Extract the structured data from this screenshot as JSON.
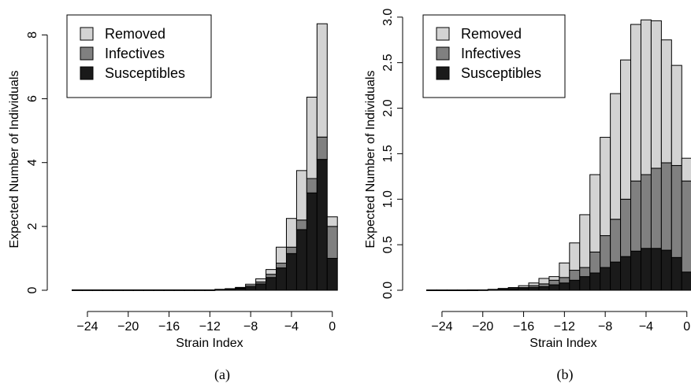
{
  "chart_data": [
    {
      "type": "bar",
      "stacked": true,
      "caption": "(a)",
      "xlabel": "Strain Index",
      "ylabel": "Expected Number of Individuals",
      "x_ticks": [
        -24,
        -20,
        -16,
        -12,
        -8,
        -4,
        0
      ],
      "y_ticks": [
        0,
        2,
        4,
        6,
        8
      ],
      "xlim": [
        -25,
        0
      ],
      "ylim": [
        0,
        8.7
      ],
      "legend": {
        "position": "top-left",
        "entries": [
          "Removed",
          "Infectives",
          "Susceptibles"
        ]
      },
      "colors": {
        "Removed": "#d3d3d3",
        "Infectives": "#808080",
        "Susceptibles": "#1a1a1a"
      },
      "x": [
        -25,
        -24,
        -23,
        -22,
        -21,
        -20,
        -19,
        -18,
        -17,
        -16,
        -15,
        -14,
        -13,
        -12,
        -11,
        -10,
        -9,
        -8,
        -7,
        -6,
        -5,
        -4,
        -3,
        -2,
        -1,
        0
      ],
      "series": [
        {
          "name": "Susceptibles",
          "values": [
            0.01,
            0.01,
            0.01,
            0.01,
            0.01,
            0.01,
            0.01,
            0.01,
            0.01,
            0.01,
            0.01,
            0.01,
            0.01,
            0.01,
            0.02,
            0.03,
            0.05,
            0.1,
            0.2,
            0.4,
            0.7,
            1.15,
            1.9,
            3.05,
            4.1,
            1.0
          ]
        },
        {
          "name": "Infectives",
          "values": [
            0,
            0,
            0,
            0,
            0,
            0,
            0,
            0,
            0,
            0,
            0,
            0,
            0,
            0,
            0,
            0.01,
            0.02,
            0.04,
            0.06,
            0.1,
            0.15,
            0.2,
            0.3,
            0.45,
            0.7,
            1.0
          ]
        },
        {
          "name": "Removed",
          "values": [
            0,
            0,
            0,
            0,
            0,
            0,
            0,
            0,
            0,
            0,
            0,
            0,
            0,
            0,
            0.01,
            0.01,
            0.02,
            0.05,
            0.1,
            0.15,
            0.5,
            0.9,
            1.55,
            2.55,
            3.55,
            0.3
          ]
        }
      ]
    },
    {
      "type": "bar",
      "stacked": true,
      "caption": "(b)",
      "xlabel": "Strain Index",
      "ylabel": "Expected Number of Individuals",
      "x_ticks": [
        -24,
        -20,
        -16,
        -12,
        -8,
        -4,
        0
      ],
      "y_ticks": [
        "0.0",
        "0.5",
        "1.0",
        "1.5",
        "2.0",
        "2.5",
        "3.0"
      ],
      "xlim": [
        -25,
        0
      ],
      "ylim": [
        0,
        3.05
      ],
      "legend": {
        "position": "top-left",
        "entries": [
          "Removed",
          "Infectives",
          "Susceptibles"
        ]
      },
      "colors": {
        "Removed": "#d3d3d3",
        "Infectives": "#808080",
        "Susceptibles": "#1a1a1a"
      },
      "x": [
        -25,
        -24,
        -23,
        -22,
        -21,
        -20,
        -19,
        -18,
        -17,
        -16,
        -15,
        -14,
        -13,
        -12,
        -11,
        -10,
        -9,
        -8,
        -7,
        -6,
        -5,
        -4,
        -3,
        -2,
        -1,
        0
      ],
      "series": [
        {
          "name": "Susceptibles",
          "values": [
            0.002,
            0.002,
            0.002,
            0.002,
            0.003,
            0.004,
            0.005,
            0.008,
            0.01,
            0.02,
            0.03,
            0.04,
            0.06,
            0.08,
            0.11,
            0.15,
            0.19,
            0.25,
            0.31,
            0.37,
            0.43,
            0.46,
            0.46,
            0.44,
            0.36,
            0.2
          ]
        },
        {
          "name": "Infectives",
          "values": [
            0,
            0,
            0,
            0,
            0,
            0,
            0.002,
            0.005,
            0.01,
            0.01,
            0.02,
            0.03,
            0.05,
            0.06,
            0.11,
            0.1,
            0.23,
            0.35,
            0.47,
            0.63,
            0.77,
            0.81,
            0.88,
            0.96,
            1.01,
            1.0
          ]
        },
        {
          "name": "Removed",
          "values": [
            0,
            0,
            0,
            0,
            0,
            0,
            0.003,
            0.007,
            0.01,
            0.02,
            0.03,
            0.06,
            0.04,
            0.16,
            0.3,
            0.58,
            0.85,
            1.08,
            1.38,
            1.53,
            1.72,
            1.7,
            1.62,
            1.35,
            1.1,
            0.25
          ]
        }
      ]
    }
  ]
}
